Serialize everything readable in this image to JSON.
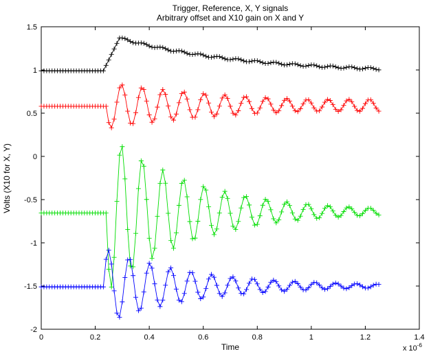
{
  "chart_data": {
    "type": "line",
    "title": "Trigger, Reference, X, Y signals",
    "subtitle": "Arbitrary offset and X10 gain on X and Y",
    "xlabel": "Time",
    "ylabel": "Volts (X10 for X, Y)",
    "x_multiplier": "x 10",
    "x_multiplier_exponent": "-6",
    "xlim": [
      0,
      1.4
    ],
    "ylim": [
      -2,
      1.5
    ],
    "x_ticks": [
      0,
      0.2,
      0.4,
      0.6,
      0.8,
      1,
      1.2,
      1.4
    ],
    "x_tick_labels": [
      "0",
      "0.2",
      "0.4",
      "0.6",
      "0.8",
      "1",
      "1.2",
      "1.4"
    ],
    "y_ticks": [
      1.5,
      1,
      0.5,
      0,
      -0.5,
      -1,
      -1.5,
      -2
    ],
    "y_tick_labels": [
      "1.5",
      "1",
      "0.5",
      "0",
      "-0.5",
      "-1",
      "-1.5",
      "-2"
    ],
    "grid": false,
    "legend": "none",
    "marker": "+",
    "x_start": 0,
    "x_end": 1.25,
    "x_step": 0.01,
    "series": [
      {
        "color": "#000000",
        "model": "step-decay",
        "baseline": 0.99,
        "onset": 0.23,
        "peak_time": 0.29,
        "peak": 1.37,
        "final": 0.965,
        "tau": 0.45,
        "noise": 0.012
      },
      {
        "color": "#ff0000",
        "model": "ringing",
        "baseline": 0.58,
        "onset": 0.24,
        "center": 0.59,
        "amplitude": -0.27,
        "period": 0.0765,
        "tau": 0.55,
        "floor_amplitude": 0.07
      },
      {
        "color": "#00dd00",
        "model": "ringing",
        "baseline": -0.655,
        "onset": 0.24,
        "center": -0.64,
        "amplitude": -0.93,
        "period": 0.0765,
        "tau": 0.32,
        "floor_amplitude": 0.0
      },
      {
        "color": "#0000ff",
        "model": "ringing",
        "baseline": -1.51,
        "onset": 0.23,
        "center": -1.5,
        "amplitude": 0.44,
        "period": 0.0765,
        "tau": 0.34,
        "floor_amplitude": 0.02
      }
    ]
  }
}
